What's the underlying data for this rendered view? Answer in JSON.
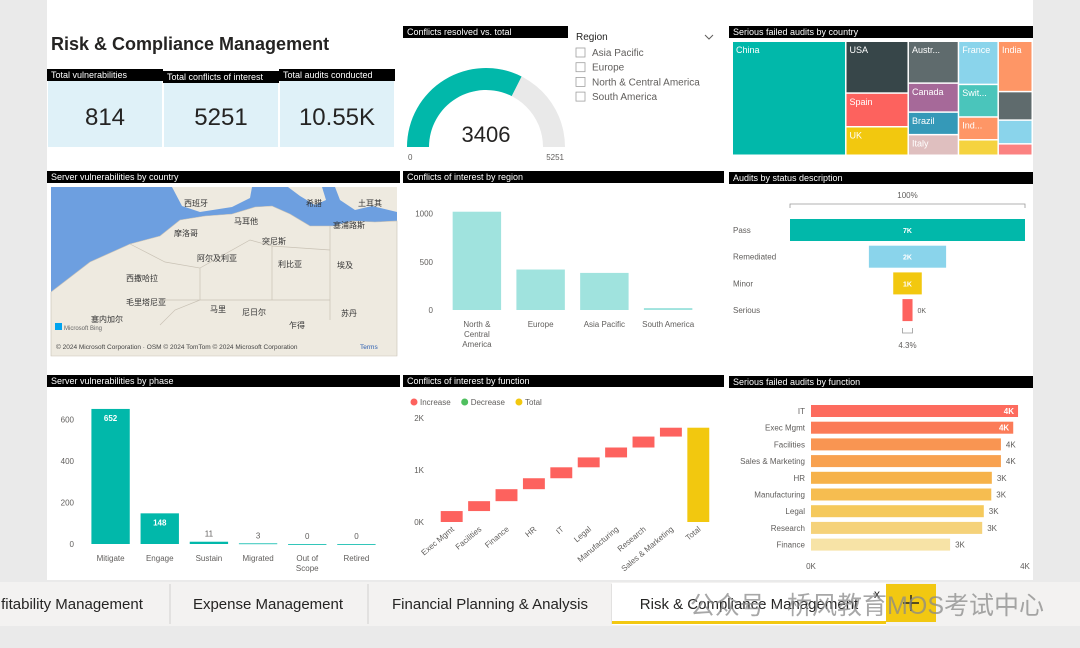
{
  "header": {
    "title": "Risk & Compliance Management"
  },
  "cards": [
    {
      "label": "Total vulnerabilities",
      "value": "814"
    },
    {
      "label": "Total conflicts of interest",
      "value": "5251"
    },
    {
      "label": "Total audits conducted",
      "value": "10.55K"
    }
  ],
  "gauge": {
    "title": "Conflicts resolved vs. total",
    "value": 3406,
    "min": 0,
    "max": 5251,
    "color": "#01b8aa"
  },
  "slicer": {
    "title": "Region",
    "options": [
      "Asia Pacific",
      "Europe",
      "North & Central America",
      "South America"
    ]
  },
  "treemap": {
    "type": "treemap",
    "title": "Serious failed audits by country",
    "items": [
      {
        "name": "China",
        "value": 40,
        "color": "#01b8aa"
      },
      {
        "name": "USA",
        "value": 10,
        "color": "#374649"
      },
      {
        "name": "Spain",
        "value": 6.5,
        "color": "#fd625e"
      },
      {
        "name": "UK",
        "value": 5.5,
        "color": "#f2c80f"
      },
      {
        "name": "Austr...",
        "value": 6.5,
        "color": "#5f6b6d"
      },
      {
        "name": "Canada",
        "value": 4.5,
        "color": "#a66999"
      },
      {
        "name": "Brazil",
        "value": 3.5,
        "color": "#3599b8"
      },
      {
        "name": "Italy",
        "value": 3.2,
        "color": "#dfbfbf"
      },
      {
        "name": "France",
        "value": 5.3,
        "color": "#8ad4eb"
      },
      {
        "name": "Swit...",
        "value": 4,
        "color": "#4ac5bb"
      },
      {
        "name": "Ind...",
        "value": 2.8,
        "color": "#fe9666"
      },
      {
        "name": null,
        "value": 1.9,
        "color": "#f5d33f"
      },
      {
        "name": "India",
        "value": 5.3,
        "color": "#fe9666"
      },
      {
        "name": null,
        "value": 3,
        "color": "#5f6b6d"
      },
      {
        "name": null,
        "value": 2.5,
        "color": "#8ad4eb"
      },
      {
        "name": null,
        "value": 1.2,
        "color": "#fb8281"
      }
    ]
  },
  "map": {
    "title": "Server vulnerabilities by country",
    "labels": [
      "西班牙",
      "马耳他",
      "希腊",
      "土耳其",
      "突尼斯",
      "塞浦路斯",
      "摩洛哥",
      "阿尔及利亚",
      "利比亚",
      "埃及",
      "西撒哈拉",
      "毛里塔尼亚",
      "马里",
      "尼日尔",
      "乍得",
      "苏丹",
      "塞内加尔"
    ],
    "logo": "Microsoft Bing",
    "attribution": "© 2024 Microsoft Corporation · OSM © 2024 TomTom © 2024 Microsoft Corporation",
    "terms": "Terms"
  },
  "region_chart": {
    "type": "bar",
    "title": "Conflicts of interest by region",
    "categories": [
      "North & Central America",
      "Europe",
      "Asia Pacific",
      "South America"
    ],
    "values": [
      1020,
      420,
      385,
      20
    ],
    "color": "#a0e3de",
    "ylim": [
      0,
      1100
    ],
    "yticks": [
      0,
      500,
      1000
    ]
  },
  "funnel": {
    "type": "funnel",
    "title": "Audits by status description",
    "categories": [
      "Pass",
      "Remediated",
      "Minor",
      "Serious"
    ],
    "values": [
      7000,
      2300,
      850,
      300
    ],
    "value_labels": [
      "7K",
      "2K",
      "1K",
      "0K"
    ],
    "colors": [
      "#01b8aa",
      "#8ad4eb",
      "#f2c80f",
      "#fd625e"
    ],
    "top_label": "100%",
    "bottom_label": "4.3%"
  },
  "phase_chart": {
    "type": "bar",
    "title": "Server vulnerabilities by phase",
    "categories": [
      "Mitigate",
      "Engage",
      "Sustain",
      "Migrated",
      "Out of Scope",
      "Retired"
    ],
    "values": [
      652,
      148,
      11,
      3,
      0,
      0
    ],
    "color": "#01b8aa",
    "ylim": [
      0,
      700
    ],
    "yticks": [
      0,
      200,
      400,
      600
    ]
  },
  "waterfall": {
    "type": "waterfall",
    "title": "Conflicts of interest by function",
    "legend": [
      {
        "name": "Increase",
        "color": "#fd625e"
      },
      {
        "name": "Decrease",
        "color": "#4fbf5f"
      },
      {
        "name": "Total",
        "color": "#f2c80f"
      }
    ],
    "categories": [
      "Exec Mgmt",
      "Facilities",
      "Finance",
      "HR",
      "IT",
      "Legal",
      "Manufacturing",
      "Research",
      "Sales & Marketing"
    ],
    "values": [
      210,
      190,
      230,
      210,
      210,
      190,
      190,
      210,
      170
    ],
    "total_label": "Total",
    "total": 1810,
    "ylim": [
      0,
      2150
    ],
    "yticks": [
      {
        "value": 0,
        "label": "0K"
      },
      {
        "value": 1000,
        "label": "1K"
      },
      {
        "value": 2000,
        "label": "2K"
      }
    ]
  },
  "function_chart": {
    "type": "hbar",
    "title": "Serious failed audits by function",
    "categories": [
      "IT",
      "Exec Mgmt",
      "Facilities",
      "Sales & Marketing",
      "HR",
      "Manufacturing",
      "Legal",
      "Research",
      "Finance"
    ],
    "values": [
      3870,
      3780,
      3550,
      3550,
      3380,
      3370,
      3230,
      3200,
      2600
    ],
    "value_labels": [
      "4K",
      "4K",
      "4K",
      "4K",
      "3K",
      "3K",
      "3K",
      "3K",
      "3K"
    ],
    "colors": [
      "#fd6b5e",
      "#fb7b58",
      "#f99552",
      "#f8a14f",
      "#f6b24a",
      "#f6bd50",
      "#f5c95c",
      "#f5d27a",
      "#f7e3a6"
    ],
    "xlim": [
      0,
      4000
    ],
    "xticks": [
      {
        "value": 0,
        "label": "0K"
      },
      {
        "value": 4000,
        "label": "4K"
      }
    ]
  },
  "tabs": {
    "items": [
      "fitability Management",
      "Expense Management",
      "Financial Planning & Analysis",
      "Risk & Compliance Management"
    ],
    "active": 3,
    "close": "x"
  },
  "watermark": "公众号 · 桥风教育MOS考试中心"
}
